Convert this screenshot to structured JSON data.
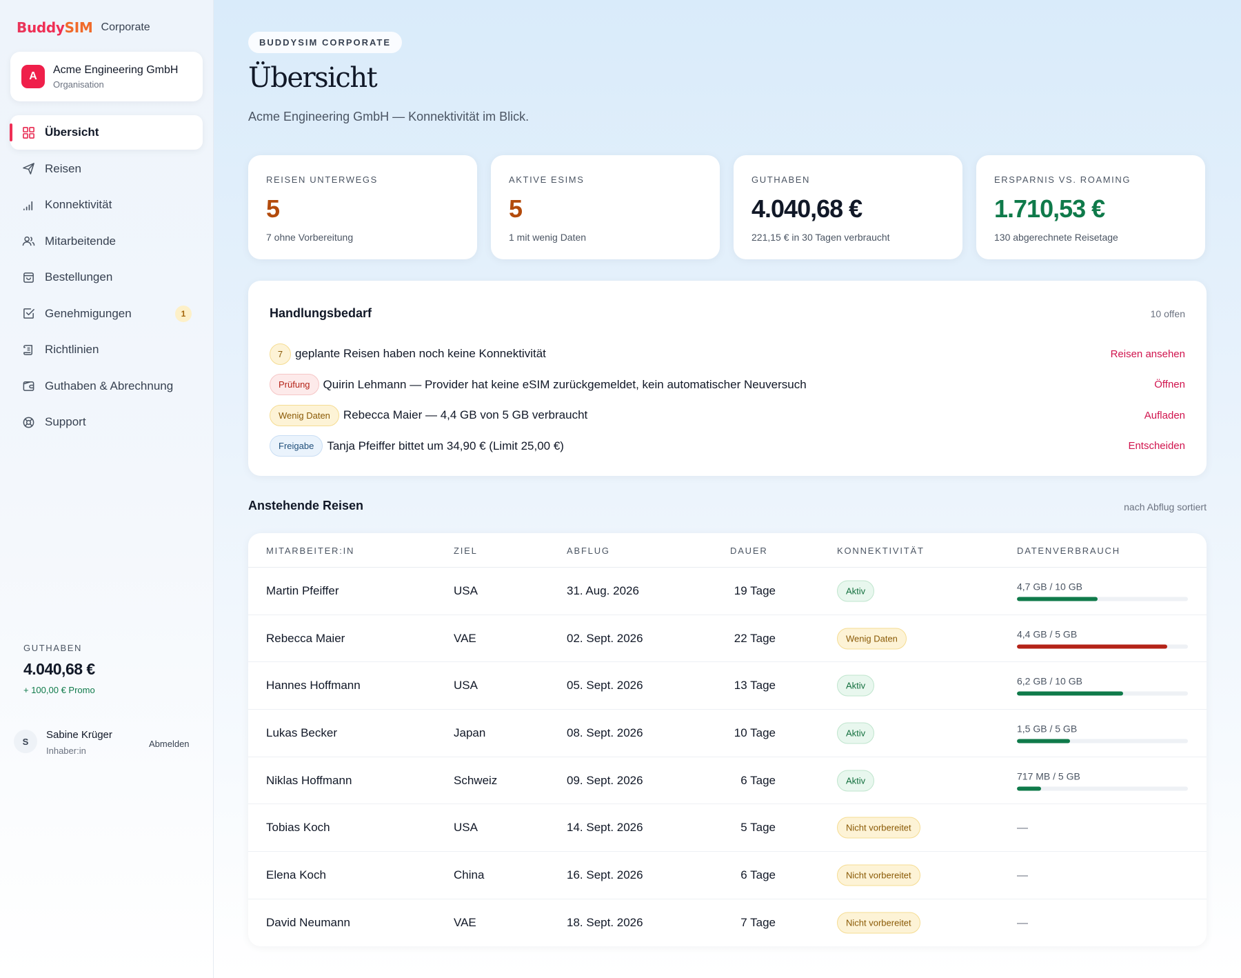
{
  "brand": {
    "logo": "BuddySIM",
    "logo_b": "B",
    "logo_mid": "uddy",
    "logo_sim": "SIM",
    "suffix": "Corporate"
  },
  "org": {
    "avatar": "A",
    "name": "Acme Engineering GmbH",
    "type": "Organisation"
  },
  "nav": {
    "items": [
      {
        "label": "Übersicht",
        "icon": "grid-icon",
        "active": true
      },
      {
        "label": "Reisen",
        "icon": "plane-icon"
      },
      {
        "label": "Konnektivität",
        "icon": "signal-icon"
      },
      {
        "label": "Mitarbeitende",
        "icon": "users-icon"
      },
      {
        "label": "Bestellungen",
        "icon": "bag-icon"
      },
      {
        "label": "Genehmigungen",
        "icon": "check-square-icon",
        "badge": "1"
      },
      {
        "label": "Richtlinien",
        "icon": "scroll-icon"
      },
      {
        "label": "Guthaben & Abrechnung",
        "icon": "wallet-icon"
      },
      {
        "label": "Support",
        "icon": "lifebuoy-icon"
      }
    ]
  },
  "sidebar_balance": {
    "label": "GUTHABEN",
    "amount": "4.040,68 €",
    "promo": "+ 100,00 € Promo"
  },
  "user": {
    "initial": "S",
    "name": "Sabine Krüger",
    "role": "Inhaber:in",
    "logout": "Abmelden"
  },
  "header": {
    "eyebrow": "BUDDYSIM CORPORATE",
    "title": "Übersicht",
    "subtitle": "Acme Engineering GmbH — Konnektivität im Blick."
  },
  "stats": [
    {
      "label": "REISEN UNTERWEGS",
      "value": "5",
      "sub": "7 ohne Vorbereitung",
      "color": "#b34b0c"
    },
    {
      "label": "AKTIVE ESIMS",
      "value": "5",
      "sub": "1 mit wenig Daten",
      "color": "#b34b0c"
    },
    {
      "label": "GUTHABEN",
      "value": "4.040,68 €",
      "sub": "221,15 € in 30 Tagen verbraucht",
      "color": "#111827"
    },
    {
      "label": "ERSPARNIS VS. ROAMING",
      "value": "1.710,53 €",
      "sub": "130 abgerechnete Reisetage",
      "color": "#0f7a4a"
    }
  ],
  "actions": {
    "title": "Handlungsbedarf",
    "count": "10 offen",
    "items": [
      {
        "pill": "7",
        "pill_style": "yellow",
        "text": "geplante Reisen haben noch keine Konnektivität",
        "link": "Reisen ansehen"
      },
      {
        "pill": "Prüfung",
        "pill_style": "red",
        "text": "Quirin Lehmann — Provider hat keine eSIM zurückgemeldet, kein automatischer Neuversuch",
        "link": "Öffnen"
      },
      {
        "pill": "Wenig Daten",
        "pill_style": "yellow",
        "text": "Rebecca Maier — 4,4 GB von 5 GB verbraucht",
        "link": "Aufladen"
      },
      {
        "pill": "Freigabe",
        "pill_style": "blue",
        "text": "Tanja Pfeiffer bittet um 34,90 € (Limit 25,00 €)",
        "link": "Entscheiden"
      }
    ]
  },
  "trips": {
    "title": "Anstehende Reisen",
    "sort_note": "nach Abflug sortiert",
    "columns": {
      "name": "MITARBEITER:IN",
      "dest": "ZIEL",
      "departure": "ABFLUG",
      "duration": "DAUER",
      "connectivity": "KONNEKTIVITÄT",
      "usage": "DATENVERBRAUCH"
    },
    "rows": [
      {
        "name": "Martin Pfeiffer",
        "dest": "USA",
        "departure": "31. Aug. 2026",
        "duration": "19 Tage",
        "status": "Aktiv",
        "status_style": "green",
        "usage": "4,7 GB / 10 GB",
        "usage_fraction": 0.47,
        "bar_color": "#0f7a4a"
      },
      {
        "name": "Rebecca Maier",
        "dest": "VAE",
        "departure": "02. Sept. 2026",
        "duration": "22 Tage",
        "status": "Wenig Daten",
        "status_style": "yellow",
        "usage": "4,4 GB / 5 GB",
        "usage_fraction": 0.88,
        "bar_color": "#b42318"
      },
      {
        "name": "Hannes Hoffmann",
        "dest": "USA",
        "departure": "05. Sept. 2026",
        "duration": "13 Tage",
        "status": "Aktiv",
        "status_style": "green",
        "usage": "6,2 GB / 10 GB",
        "usage_fraction": 0.62,
        "bar_color": "#0f7a4a"
      },
      {
        "name": "Lukas Becker",
        "dest": "Japan",
        "departure": "08. Sept. 2026",
        "duration": "10 Tage",
        "status": "Aktiv",
        "status_style": "green",
        "usage": "1,5 GB / 5 GB",
        "usage_fraction": 0.31,
        "bar_color": "#0f7a4a"
      },
      {
        "name": "Niklas Hoffmann",
        "dest": "Schweiz",
        "departure": "09. Sept. 2026",
        "duration": "6 Tage",
        "status": "Aktiv",
        "status_style": "green",
        "usage": "717 MB / 5 GB",
        "usage_fraction": 0.14,
        "bar_color": "#0f7a4a"
      },
      {
        "name": "Tobias Koch",
        "dest": "USA",
        "departure": "14. Sept. 2026",
        "duration": "5 Tage",
        "status": "Nicht vorbereitet",
        "status_style": "yellow",
        "usage": "—"
      },
      {
        "name": "Elena Koch",
        "dest": "China",
        "departure": "16. Sept. 2026",
        "duration": "6 Tage",
        "status": "Nicht vorbereitet",
        "status_style": "yellow",
        "usage": "—"
      },
      {
        "name": "David Neumann",
        "dest": "VAE",
        "departure": "18. Sept. 2026",
        "duration": "7 Tage",
        "status": "Nicht vorbereitet",
        "status_style": "yellow",
        "usage": "—"
      }
    ]
  }
}
